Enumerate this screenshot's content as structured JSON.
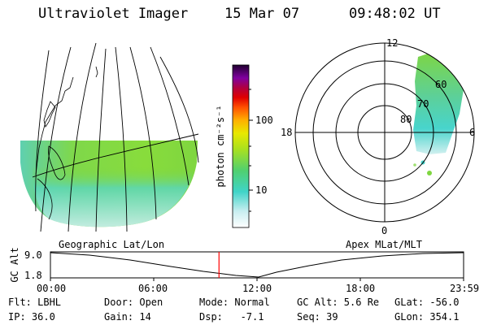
{
  "header": {
    "instrument": "Ultraviolet Imager",
    "date": "15 Mar 07",
    "time": "09:48:02 UT"
  },
  "panels": {
    "geo_label": "Geographic Lat/Lon",
    "apex_label": "Apex MLat/MLT"
  },
  "colorbar": {
    "unit_label": "photon cm⁻²s⁻¹",
    "ticks": [
      "100",
      "10"
    ]
  },
  "polar": {
    "mlt_labels": {
      "top": "12",
      "left": "18",
      "right": "6",
      "bottom": "0"
    },
    "lat_labels": [
      "60",
      "70",
      "80"
    ]
  },
  "timeline": {
    "axis_label": "GC Alt",
    "y_ticks": [
      "9.0",
      "1.8"
    ],
    "x_ticks": [
      "00:00",
      "06:00",
      "12:00",
      "18:00",
      "23:59"
    ],
    "current_time_fraction": 0.408
  },
  "status": {
    "row1": {
      "flt": "Flt: LBHL",
      "door": "Door: Open",
      "mode": "Mode: Normal",
      "gcalt": "GC Alt: 5.6 Re",
      "glat": "GLat: -56.0"
    },
    "row2": {
      "ip": "IP: 36.0",
      "gain": "Gain: 14",
      "dsp": "Dsp:   -7.1",
      "seq": "Seq: 39",
      "glon": "GLon: 354.1"
    }
  },
  "colors": {
    "aurora_green": "#7fd633",
    "aurora_cyan": "#4fd6c8",
    "timeline_marker": "#ff0000"
  }
}
